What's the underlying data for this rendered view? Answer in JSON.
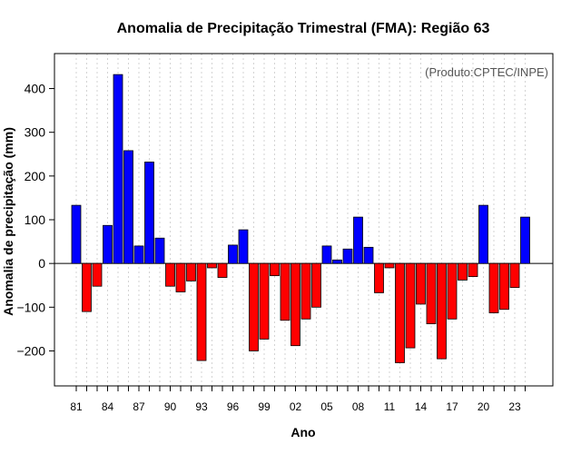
{
  "chart_data": {
    "type": "bar",
    "title": "Anomalia de Precipitação Trimestral (FMA): Região 63",
    "xlabel": "Ano",
    "ylabel": "Anomalia de precipitação (mm)",
    "annotation": "(Produto:CPTEC/INPE)",
    "ylim": [
      -280,
      480
    ],
    "yticks": [
      -200,
      -100,
      0,
      100,
      200,
      300,
      400
    ],
    "categories": [
      "81",
      "82",
      "83",
      "84",
      "85",
      "86",
      "87",
      "88",
      "89",
      "90",
      "91",
      "92",
      "93",
      "94",
      "95",
      "96",
      "97",
      "98",
      "99",
      "00",
      "01",
      "02",
      "03",
      "04",
      "05",
      "06",
      "07",
      "08",
      "09",
      "10",
      "11",
      "12",
      "13",
      "14",
      "15",
      "16",
      "17",
      "18",
      "19",
      "20",
      "21",
      "22",
      "23",
      "24"
    ],
    "x_tick_labels": [
      "81",
      "84",
      "87",
      "90",
      "93",
      "96",
      "99",
      "02",
      "05",
      "08",
      "11",
      "14",
      "17",
      "20",
      "23"
    ],
    "values": [
      133,
      -110,
      -52,
      87,
      432,
      258,
      40,
      232,
      58,
      -52,
      -65,
      -40,
      -222,
      -10,
      -32,
      42,
      77,
      -200,
      -173,
      -28,
      -130,
      -188,
      -127,
      -100,
      40,
      8,
      33,
      106,
      37,
      -67,
      -10,
      -227,
      -193,
      -93,
      -138,
      -218,
      -127,
      -38,
      -30,
      133,
      -113,
      -105,
      -55,
      106
    ],
    "colors": {
      "positive": "#0000ff",
      "negative": "#ff0000"
    },
    "grid": true
  }
}
